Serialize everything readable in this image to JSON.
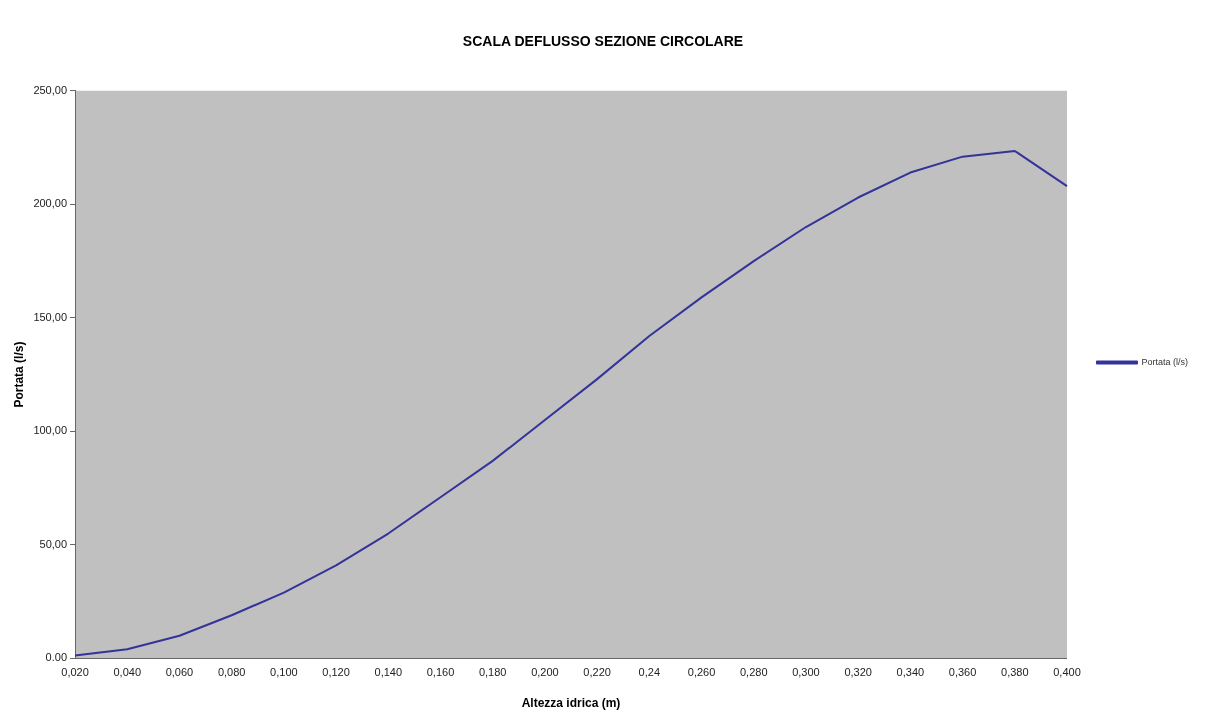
{
  "chart_data": {
    "type": "line",
    "title": "SCALA DEFLUSSO SEZIONE CIRCOLARE",
    "xlabel": "Altezza idrica (m)",
    "ylabel": "Portata (l/s)",
    "categories": [
      "0,020",
      "0,040",
      "0,060",
      "0,080",
      "0,100",
      "0,120",
      "0,140",
      "0,160",
      "0,180",
      "0,200",
      "0,220",
      "0,24",
      "0,260",
      "0,280",
      "0,300",
      "0,320",
      "0,340",
      "0,360",
      "0,380",
      "0,400"
    ],
    "series": [
      {
        "name": "Portata (l/s)",
        "color": "#333399",
        "values": [
          1.3,
          4,
          10,
          19,
          29,
          41,
          55,
          71,
          87,
          105,
          123,
          142,
          159,
          175,
          190,
          203,
          214,
          221,
          223.5,
          208
        ]
      }
    ],
    "ylim": [
      0,
      250
    ],
    "yticks": [
      {
        "value": 0,
        "label": "0.00"
      },
      {
        "value": 50,
        "label": "50,00"
      },
      {
        "value": 100,
        "label": "100,00"
      },
      {
        "value": 150,
        "label": "150,00"
      },
      {
        "value": 200,
        "label": "200,00"
      },
      {
        "value": 250,
        "label": "250,00"
      }
    ],
    "legend": "right",
    "marker": "none",
    "grid": false
  }
}
